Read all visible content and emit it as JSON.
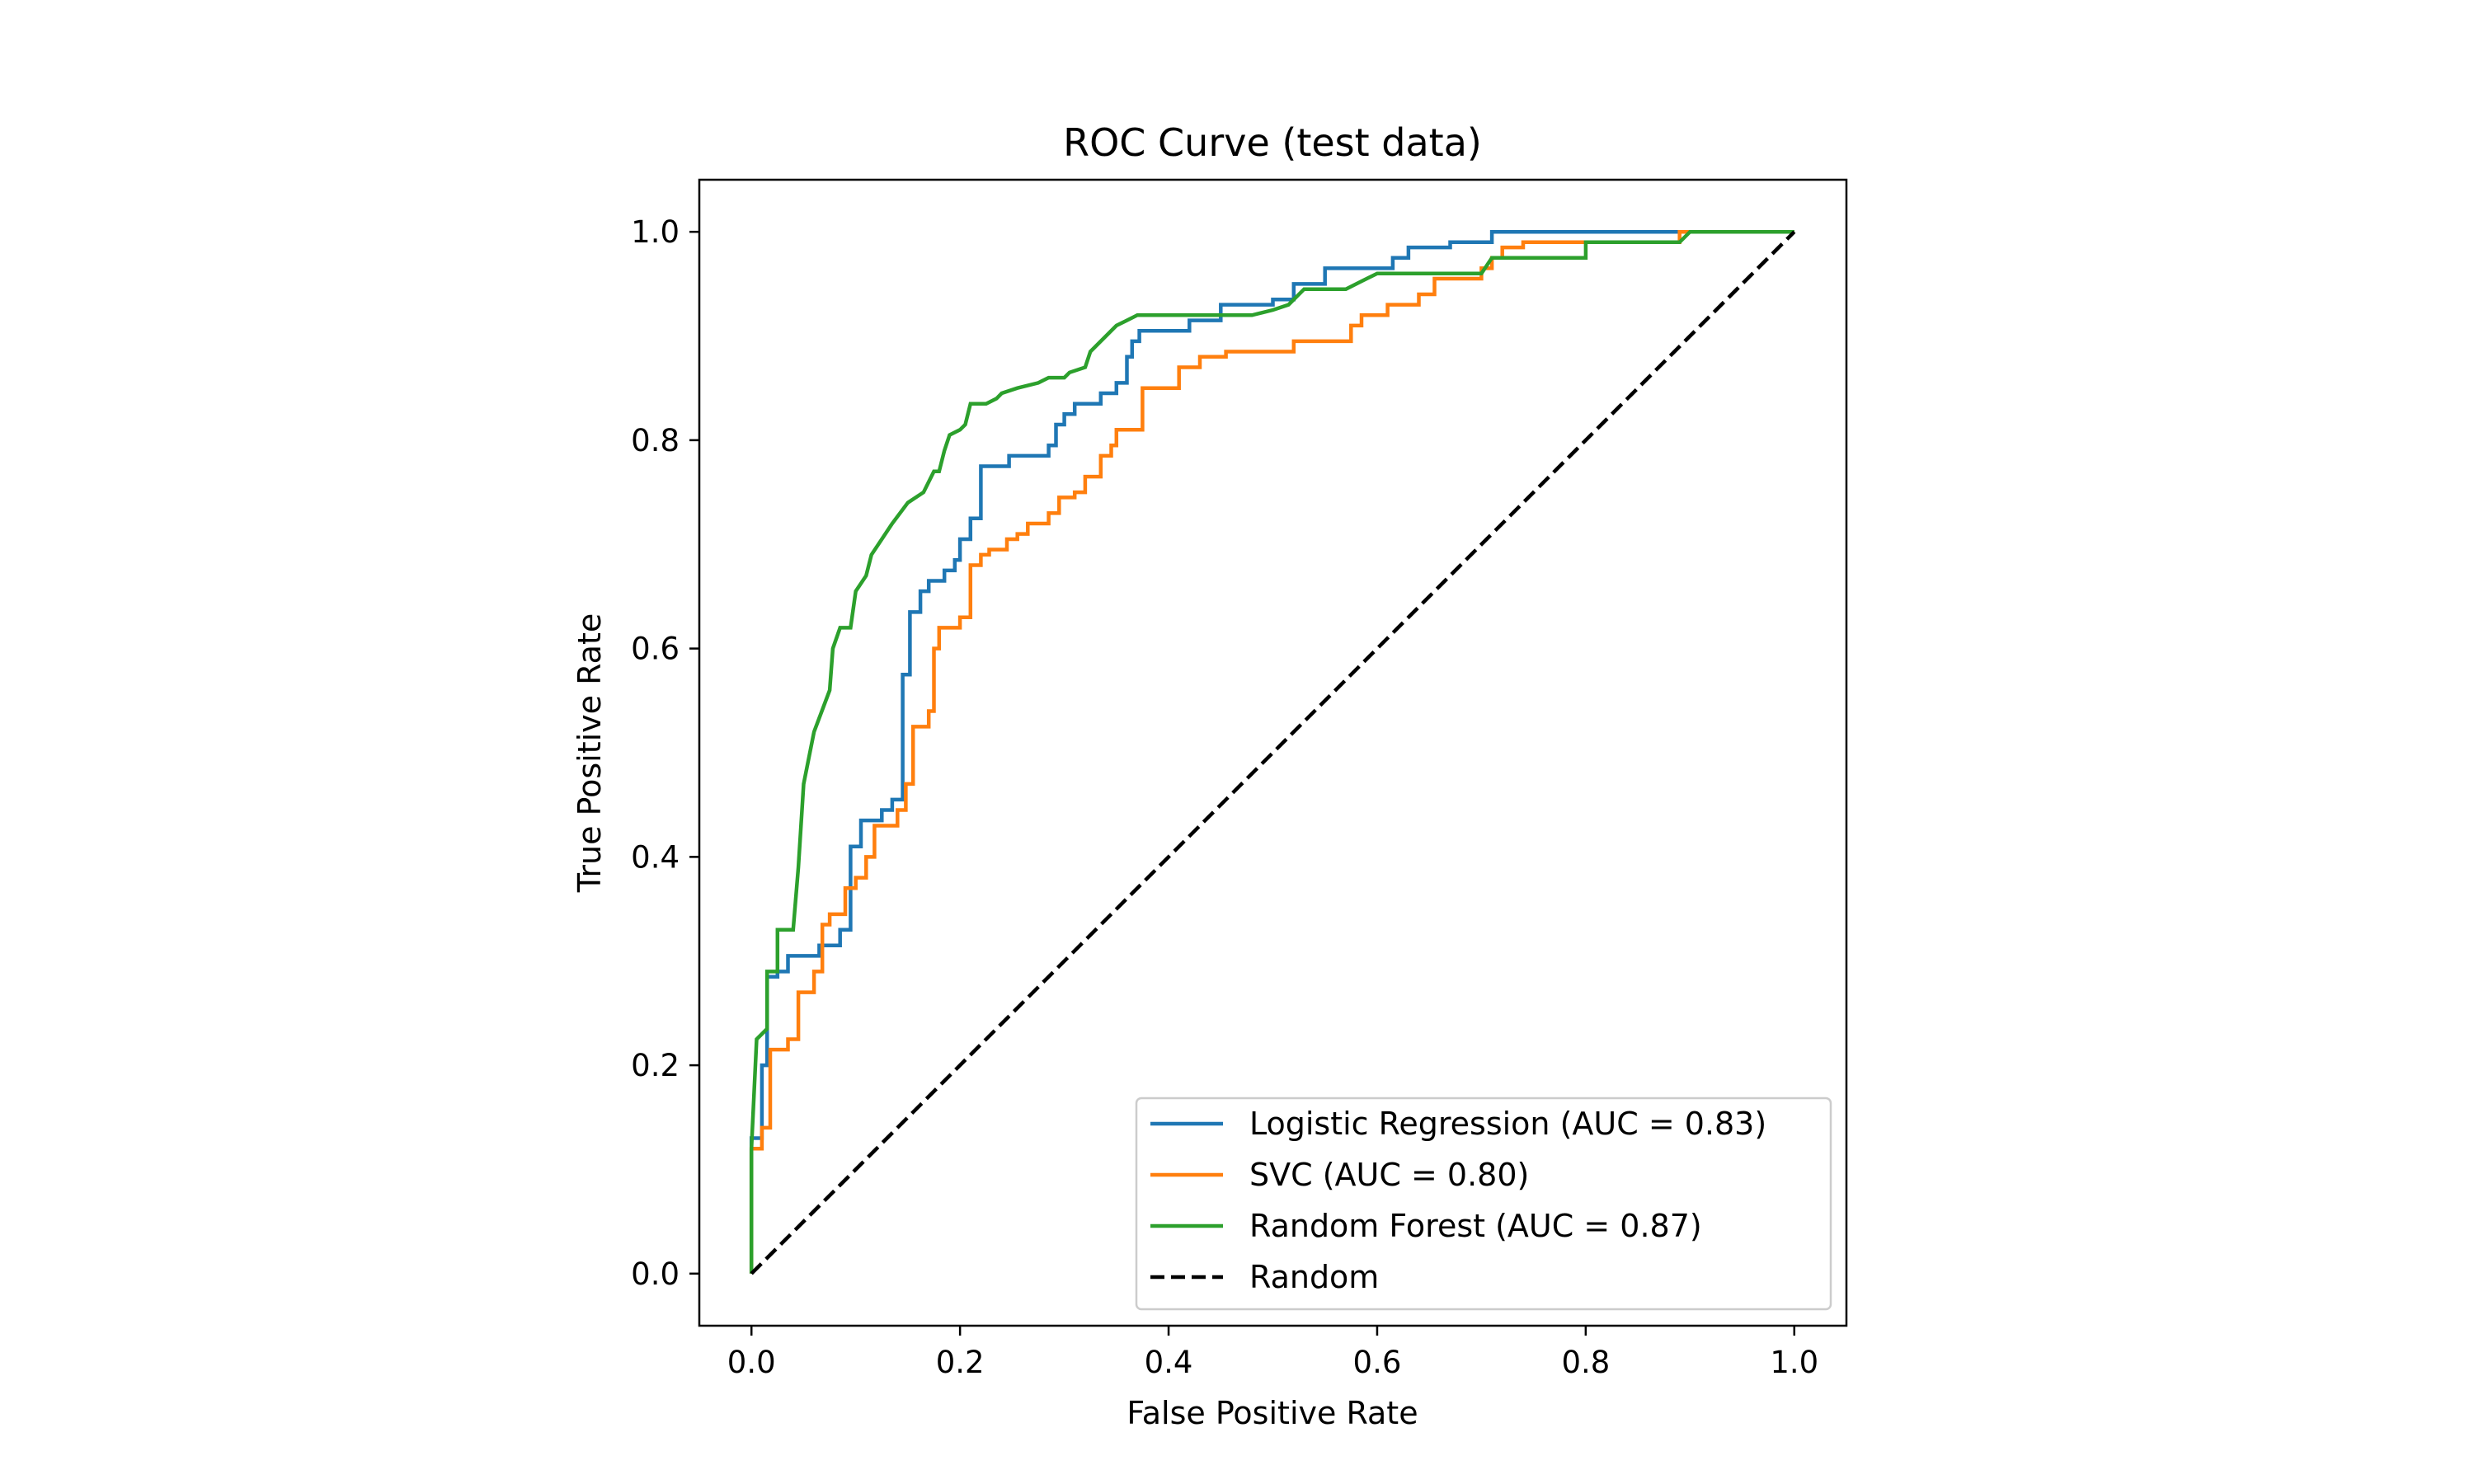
{
  "chart_data": {
    "type": "line",
    "title": "ROC Curve (test data)",
    "xlabel": "False Positive Rate",
    "ylabel": "True Positive Rate",
    "xlim": [
      -0.05,
      1.05
    ],
    "ylim": [
      -0.05,
      1.05
    ],
    "xticks": [
      "0.0",
      "0.2",
      "0.4",
      "0.6",
      "0.8",
      "1.0"
    ],
    "yticks": [
      "0.0",
      "0.2",
      "0.4",
      "0.6",
      "0.8",
      "1.0"
    ],
    "xtick_values": [
      0,
      0.2,
      0.4,
      0.6,
      0.8,
      1.0
    ],
    "ytick_values": [
      0,
      0.2,
      0.4,
      0.6,
      0.8,
      1.0
    ],
    "grid": false,
    "legend_position": "lower-right",
    "series": [
      {
        "name": "Logistic Regression (AUC = 0.83)",
        "color": "#1f77b4",
        "dash": "solid",
        "points": [
          [
            0,
            0
          ],
          [
            0,
            0.13
          ],
          [
            0.01,
            0.13
          ],
          [
            0.01,
            0.2
          ],
          [
            0.015,
            0.2
          ],
          [
            0.015,
            0.285
          ],
          [
            0.025,
            0.285
          ],
          [
            0.025,
            0.29
          ],
          [
            0.035,
            0.29
          ],
          [
            0.035,
            0.305
          ],
          [
            0.065,
            0.305
          ],
          [
            0.065,
            0.315
          ],
          [
            0.085,
            0.315
          ],
          [
            0.085,
            0.33
          ],
          [
            0.095,
            0.33
          ],
          [
            0.095,
            0.41
          ],
          [
            0.105,
            0.41
          ],
          [
            0.105,
            0.435
          ],
          [
            0.125,
            0.435
          ],
          [
            0.125,
            0.445
          ],
          [
            0.135,
            0.445
          ],
          [
            0.135,
            0.455
          ],
          [
            0.145,
            0.455
          ],
          [
            0.145,
            0.575
          ],
          [
            0.152,
            0.575
          ],
          [
            0.152,
            0.635
          ],
          [
            0.162,
            0.635
          ],
          [
            0.162,
            0.655
          ],
          [
            0.17,
            0.655
          ],
          [
            0.17,
            0.665
          ],
          [
            0.185,
            0.665
          ],
          [
            0.185,
            0.675
          ],
          [
            0.195,
            0.675
          ],
          [
            0.195,
            0.685
          ],
          [
            0.2,
            0.685
          ],
          [
            0.2,
            0.705
          ],
          [
            0.21,
            0.705
          ],
          [
            0.21,
            0.725
          ],
          [
            0.22,
            0.725
          ],
          [
            0.22,
            0.775
          ],
          [
            0.247,
            0.775
          ],
          [
            0.247,
            0.785
          ],
          [
            0.285,
            0.785
          ],
          [
            0.285,
            0.795
          ],
          [
            0.292,
            0.795
          ],
          [
            0.292,
            0.815
          ],
          [
            0.3,
            0.815
          ],
          [
            0.3,
            0.825
          ],
          [
            0.31,
            0.825
          ],
          [
            0.31,
            0.835
          ],
          [
            0.335,
            0.835
          ],
          [
            0.335,
            0.845
          ],
          [
            0.35,
            0.845
          ],
          [
            0.35,
            0.855
          ],
          [
            0.36,
            0.855
          ],
          [
            0.36,
            0.88
          ],
          [
            0.365,
            0.88
          ],
          [
            0.365,
            0.895
          ],
          [
            0.372,
            0.895
          ],
          [
            0.372,
            0.905
          ],
          [
            0.42,
            0.905
          ],
          [
            0.42,
            0.915
          ],
          [
            0.45,
            0.915
          ],
          [
            0.45,
            0.93
          ],
          [
            0.5,
            0.93
          ],
          [
            0.5,
            0.935
          ],
          [
            0.52,
            0.935
          ],
          [
            0.52,
            0.95
          ],
          [
            0.55,
            0.95
          ],
          [
            0.55,
            0.965
          ],
          [
            0.615,
            0.965
          ],
          [
            0.615,
            0.975
          ],
          [
            0.63,
            0.975
          ],
          [
            0.63,
            0.985
          ],
          [
            0.67,
            0.985
          ],
          [
            0.67,
            0.99
          ],
          [
            0.71,
            0.99
          ],
          [
            0.71,
            1.0
          ],
          [
            1.0,
            1.0
          ]
        ]
      },
      {
        "name": "SVC (AUC = 0.80)",
        "color": "#ff7f0e",
        "dash": "solid",
        "points": [
          [
            0,
            0
          ],
          [
            0,
            0.12
          ],
          [
            0.01,
            0.12
          ],
          [
            0.01,
            0.14
          ],
          [
            0.018,
            0.14
          ],
          [
            0.018,
            0.215
          ],
          [
            0.035,
            0.215
          ],
          [
            0.035,
            0.225
          ],
          [
            0.045,
            0.225
          ],
          [
            0.045,
            0.27
          ],
          [
            0.06,
            0.27
          ],
          [
            0.06,
            0.29
          ],
          [
            0.068,
            0.29
          ],
          [
            0.068,
            0.335
          ],
          [
            0.075,
            0.335
          ],
          [
            0.075,
            0.345
          ],
          [
            0.09,
            0.345
          ],
          [
            0.09,
            0.37
          ],
          [
            0.1,
            0.37
          ],
          [
            0.1,
            0.38
          ],
          [
            0.11,
            0.38
          ],
          [
            0.11,
            0.4
          ],
          [
            0.118,
            0.4
          ],
          [
            0.118,
            0.43
          ],
          [
            0.14,
            0.43
          ],
          [
            0.14,
            0.445
          ],
          [
            0.148,
            0.445
          ],
          [
            0.148,
            0.47
          ],
          [
            0.155,
            0.47
          ],
          [
            0.155,
            0.525
          ],
          [
            0.17,
            0.525
          ],
          [
            0.17,
            0.54
          ],
          [
            0.175,
            0.54
          ],
          [
            0.175,
            0.6
          ],
          [
            0.18,
            0.6
          ],
          [
            0.18,
            0.62
          ],
          [
            0.2,
            0.62
          ],
          [
            0.2,
            0.63
          ],
          [
            0.21,
            0.63
          ],
          [
            0.21,
            0.68
          ],
          [
            0.22,
            0.68
          ],
          [
            0.22,
            0.69
          ],
          [
            0.228,
            0.69
          ],
          [
            0.228,
            0.695
          ],
          [
            0.245,
            0.695
          ],
          [
            0.245,
            0.705
          ],
          [
            0.255,
            0.705
          ],
          [
            0.255,
            0.71
          ],
          [
            0.265,
            0.71
          ],
          [
            0.265,
            0.72
          ],
          [
            0.285,
            0.72
          ],
          [
            0.285,
            0.73
          ],
          [
            0.295,
            0.73
          ],
          [
            0.295,
            0.745
          ],
          [
            0.31,
            0.745
          ],
          [
            0.31,
            0.75
          ],
          [
            0.32,
            0.75
          ],
          [
            0.32,
            0.765
          ],
          [
            0.335,
            0.765
          ],
          [
            0.335,
            0.785
          ],
          [
            0.345,
            0.785
          ],
          [
            0.345,
            0.795
          ],
          [
            0.35,
            0.795
          ],
          [
            0.35,
            0.81
          ],
          [
            0.375,
            0.81
          ],
          [
            0.375,
            0.85
          ],
          [
            0.41,
            0.85
          ],
          [
            0.41,
            0.87
          ],
          [
            0.43,
            0.87
          ],
          [
            0.43,
            0.88
          ],
          [
            0.455,
            0.88
          ],
          [
            0.455,
            0.885
          ],
          [
            0.52,
            0.885
          ],
          [
            0.52,
            0.895
          ],
          [
            0.575,
            0.895
          ],
          [
            0.575,
            0.91
          ],
          [
            0.585,
            0.91
          ],
          [
            0.585,
            0.92
          ],
          [
            0.61,
            0.92
          ],
          [
            0.61,
            0.93
          ],
          [
            0.64,
            0.93
          ],
          [
            0.64,
            0.94
          ],
          [
            0.655,
            0.94
          ],
          [
            0.655,
            0.955
          ],
          [
            0.7,
            0.955
          ],
          [
            0.7,
            0.965
          ],
          [
            0.71,
            0.965
          ],
          [
            0.71,
            0.975
          ],
          [
            0.72,
            0.975
          ],
          [
            0.72,
            0.985
          ],
          [
            0.74,
            0.985
          ],
          [
            0.74,
            0.99
          ],
          [
            0.89,
            0.99
          ],
          [
            0.89,
            1.0
          ],
          [
            1.0,
            1.0
          ]
        ]
      },
      {
        "name": "Random Forest (AUC = 0.87)",
        "color": "#2ca02c",
        "dash": "solid",
        "points": [
          [
            0,
            0
          ],
          [
            0,
            0.12
          ],
          [
            0.005,
            0.225
          ],
          [
            0.015,
            0.235
          ],
          [
            0.015,
            0.29
          ],
          [
            0.025,
            0.29
          ],
          [
            0.025,
            0.33
          ],
          [
            0.04,
            0.33
          ],
          [
            0.045,
            0.39
          ],
          [
            0.05,
            0.47
          ],
          [
            0.06,
            0.52
          ],
          [
            0.075,
            0.56
          ],
          [
            0.078,
            0.6
          ],
          [
            0.085,
            0.62
          ],
          [
            0.095,
            0.62
          ],
          [
            0.1,
            0.655
          ],
          [
            0.11,
            0.67
          ],
          [
            0.115,
            0.69
          ],
          [
            0.125,
            0.705
          ],
          [
            0.135,
            0.72
          ],
          [
            0.15,
            0.74
          ],
          [
            0.165,
            0.75
          ],
          [
            0.175,
            0.77
          ],
          [
            0.18,
            0.77
          ],
          [
            0.185,
            0.79
          ],
          [
            0.19,
            0.805
          ],
          [
            0.2,
            0.81
          ],
          [
            0.205,
            0.815
          ],
          [
            0.21,
            0.835
          ],
          [
            0.225,
            0.835
          ],
          [
            0.235,
            0.84
          ],
          [
            0.24,
            0.845
          ],
          [
            0.255,
            0.85
          ],
          [
            0.275,
            0.855
          ],
          [
            0.285,
            0.86
          ],
          [
            0.3,
            0.86
          ],
          [
            0.305,
            0.865
          ],
          [
            0.32,
            0.87
          ],
          [
            0.325,
            0.885
          ],
          [
            0.34,
            0.9
          ],
          [
            0.35,
            0.91
          ],
          [
            0.36,
            0.915
          ],
          [
            0.37,
            0.92
          ],
          [
            0.48,
            0.92
          ],
          [
            0.5,
            0.925
          ],
          [
            0.515,
            0.93
          ],
          [
            0.53,
            0.945
          ],
          [
            0.57,
            0.945
          ],
          [
            0.59,
            0.955
          ],
          [
            0.6,
            0.96
          ],
          [
            0.7,
            0.96
          ],
          [
            0.71,
            0.975
          ],
          [
            0.8,
            0.975
          ],
          [
            0.8,
            0.99
          ],
          [
            0.89,
            0.99
          ],
          [
            0.9,
            1.0
          ],
          [
            1.0,
            1.0
          ]
        ]
      },
      {
        "name": "Random",
        "color": "#000000",
        "dash": "dashed",
        "points": [
          [
            0,
            0
          ],
          [
            1,
            1
          ]
        ]
      }
    ]
  }
}
